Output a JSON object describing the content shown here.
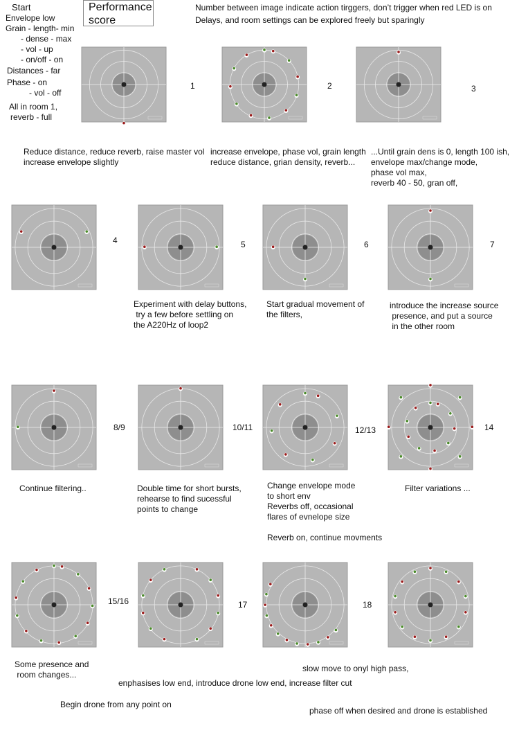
{
  "header": {
    "title": "Performance score",
    "notes": [
      "Number between image indicate action tirggers, don’t trigger when red LED is on",
      "Delays, and room settings can be explored freely but sparingly"
    ]
  },
  "start": [
    "Start",
    "Envelope low",
    "Grain - length- min",
    "- dense - max",
    "- vol - up",
    "- on/off - on",
    "Distances - far",
    "Phase - on",
    "- vol - off",
    "All in room 1,",
    "reverb - full"
  ],
  "panels": [
    {
      "label": "1"
    },
    {
      "label": "2"
    },
    {
      "label": "3"
    },
    {
      "label": "4"
    },
    {
      "label": "5"
    },
    {
      "label": "6"
    },
    {
      "label": "7"
    },
    {
      "label": "8/9"
    },
    {
      "label": "10/11"
    },
    {
      "label": "12/13"
    },
    {
      "label": "14"
    },
    {
      "label": "15/16"
    },
    {
      "label": "17"
    },
    {
      "label": "18"
    },
    {
      "label": null
    }
  ],
  "captions": [
    [
      "Reduce distance, reduce reverb, raise master vol",
      "increase envelope slightly"
    ],
    [
      "increase envelope, phase vol, grain length",
      "reduce distance, grian density, reverb..."
    ],
    [
      "...Until grain dens is 0, length 100 ish,",
      "envelope max/change mode,",
      "phase vol max,",
      "reverb 40 - 50, gran off,"
    ],
    [
      "Experiment with delay buttons,",
      " try a few before settling on",
      "the A220Hz of loop2"
    ],
    [
      "Start gradual movement of",
      "the filters,"
    ],
    [
      "introduce the increase source",
      " presence, and put a source",
      " in the other room"
    ],
    [
      "Continue filtering.."
    ],
    [
      "Double time for short bursts,",
      "rehearse to find sucessful",
      "points to change"
    ],
    [
      "Change envelope mode",
      "to short env",
      "Reverbs off, occasional",
      "flares of evnelope size"
    ],
    [
      "Reverb on, continue movments"
    ],
    [
      "Filter variations ..."
    ],
    [
      "Some presence and",
      " room changes..."
    ],
    [
      "enphasises low end, introduce drone low end, increase filter cut"
    ],
    [
      "Begin drone from any point on"
    ],
    [
      "slow move to onyl high pass,"
    ],
    [
      "phase off when desired and drone is established"
    ]
  ]
}
